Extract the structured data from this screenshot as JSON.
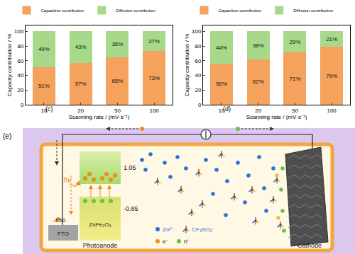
{
  "chart_data": [
    {
      "type": "bar",
      "title": "(c)",
      "stacked": true,
      "data_labels": true,
      "legend": "top",
      "grid": false,
      "x_label": "Scanning rate / (mV·s⁻¹)",
      "y_label": "Capacity contribution / %",
      "categories": [
        "10",
        "20",
        "50",
        "100"
      ],
      "series": [
        {
          "name": "Capacitive contribution",
          "color": "#F4A25C",
          "values": [
            51,
            57,
            65,
            73
          ],
          "value_labels": [
            "51%",
            "57%",
            "65%",
            "73%"
          ]
        },
        {
          "name": "Diffusion contribution",
          "color": "#A6D98A",
          "values": [
            49,
            43,
            35,
            27
          ],
          "value_labels": [
            "49%",
            "43%",
            "35%",
            "27%"
          ]
        }
      ],
      "ylim": [
        0,
        108
      ],
      "yticks": [
        0,
        20,
        40,
        60,
        80,
        100
      ]
    },
    {
      "type": "bar",
      "title": "(d)",
      "stacked": true,
      "data_labels": true,
      "legend": "top",
      "grid": false,
      "x_label": "Scanning rate / (mV·s⁻¹)",
      "y_label": "Capacity contribution / %",
      "categories": [
        "10",
        "20",
        "50",
        "100"
      ],
      "series": [
        {
          "name": "Capacitive contribution",
          "color": "#F4A25C",
          "values": [
            56,
            62,
            71,
            79
          ],
          "value_labels": [
            "56%",
            "62%",
            "71%",
            "79%"
          ]
        },
        {
          "name": "Diffusion contribution",
          "color": "#A6D98A",
          "values": [
            44,
            38,
            29,
            21
          ],
          "value_labels": [
            "44%",
            "38%",
            "29%",
            "21%"
          ]
        }
      ],
      "ylim": [
        0,
        108
      ],
      "yticks": [
        0,
        20,
        40,
        60,
        80,
        100
      ]
    }
  ],
  "diagram": {
    "title": "(e)",
    "photoanode": {
      "label": "Photoanode",
      "substrate": "FTO",
      "material": "ZnFe₂O₄",
      "light": "hν",
      "levels": {
        "conduction_band": "1.05",
        "valence_band": "-0.85",
        "substrate": "-4.50"
      }
    },
    "cathode": {
      "label": "Cathode"
    },
    "legend": {
      "cation": "Zn²⁺",
      "anion": "CF₃SO₃⁻",
      "electron": "e⁻",
      "hole": "h⁺"
    }
  }
}
